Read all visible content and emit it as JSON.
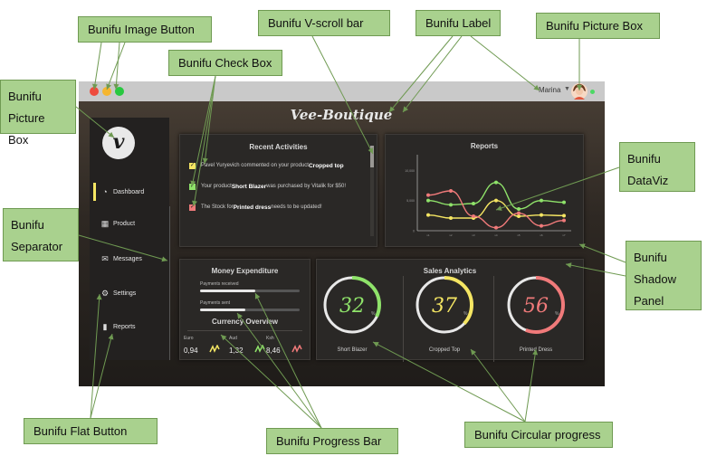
{
  "app": {
    "title": "Vee-Boutique",
    "user_name": "Marina",
    "logo_letter": "v",
    "window_buttons": {
      "close_color": "#ee4b3d",
      "minimize_color": "#f5b630",
      "maximize_color": "#28c840"
    }
  },
  "sidebar": {
    "items": [
      {
        "label": "Dashboard",
        "icon": "dashboard-icon",
        "active": true
      },
      {
        "label": "Product",
        "icon": "product-box-icon"
      },
      {
        "label": "Messages",
        "icon": "messages-icon"
      },
      {
        "label": "Settings",
        "icon": "gear-icon"
      },
      {
        "label": "Reports",
        "icon": "bar-chart-icon"
      }
    ]
  },
  "recent_activities": {
    "title": "Recent Activities",
    "items": [
      {
        "text": "Pavel Yuryevich commented on your product ",
        "bold": "Cropped top",
        "tail": "",
        "check_color": "#f5e663"
      },
      {
        "text": "Your product ",
        "bold": "Short Blazer",
        "tail": " was purchased by Vitalik for $50!",
        "check_color": "#8fe36a"
      },
      {
        "text": "The Stock for ",
        "bold": "Printed dress",
        "tail": " needs to be updated!",
        "check_color": "#f07a7a"
      }
    ]
  },
  "reports": {
    "title": "Reports"
  },
  "chart_data": {
    "type": "line",
    "title": "Reports",
    "xlabel": "",
    "ylabel": "",
    "x": [
      "x1",
      "x2",
      "x3",
      "x4",
      "x5",
      "x6",
      "x7"
    ],
    "ylim": [
      0,
      12000
    ],
    "y_ticks": [
      0,
      5000,
      10000
    ],
    "series": [
      {
        "color": "#8fe36a",
        "values": [
          5000,
          4300,
          4500,
          8000,
          3600,
          5000,
          4700
        ]
      },
      {
        "color": "#f5e663",
        "values": [
          2600,
          2100,
          2100,
          5000,
          2400,
          2600,
          2500
        ]
      },
      {
        "color": "#f07a7a",
        "values": [
          5900,
          6600,
          2400,
          500,
          2900,
          800,
          1700
        ]
      }
    ]
  },
  "money_expenditure": {
    "title": "Money Expenditure",
    "payments_received_label": "Payments received",
    "payments_received": 0.55,
    "payments_sent_label": "Payments sent",
    "payments_sent": 0.45
  },
  "currency_overview": {
    "title": "Currency Overview",
    "items": [
      {
        "name": "Euro",
        "value": "0,94",
        "color": "#f5e663"
      },
      {
        "name": "Aud",
        "value": "1,32",
        "color": "#8fe36a"
      },
      {
        "name": "Ksh",
        "value": "8,46",
        "color": "#f07a7a"
      }
    ]
  },
  "sales_analytics": {
    "title": "Sales Analytics",
    "items": [
      {
        "label": "Short Blazer",
        "value": "32",
        "percent": 32,
        "unit": "%",
        "color": "#8fe36a"
      },
      {
        "label": "Cropped Top",
        "value": "37",
        "percent": 37,
        "unit": "%",
        "color": "#f5e663"
      },
      {
        "label": "Printed Dress",
        "value": "56",
        "percent": 56,
        "unit": "%",
        "color": "#f07a7a"
      }
    ]
  },
  "annotations": {
    "image_button": "Bunifu Image Button",
    "v_scroll_bar": "Bunifu V-scroll bar",
    "label": "Bunifu Label",
    "picture_box_top": "Bunifu Picture Box",
    "check_box": "Bunifu Check Box",
    "picture_box_left": [
      "Bunifu",
      "Picture Box"
    ],
    "dataviz": [
      "Bunifu",
      "DataViz"
    ],
    "separator": [
      "Bunifu",
      "Separator"
    ],
    "shadow_panel": [
      "Bunifu",
      "Shadow",
      "Panel"
    ],
    "flat_button": "Bunifu Flat Button",
    "progress_bar": "Bunifu Progress Bar",
    "circular_progress": "Bunifu Circular progress",
    "callout_color": "#a9d18e",
    "arrow_color": "#6f9a52"
  }
}
